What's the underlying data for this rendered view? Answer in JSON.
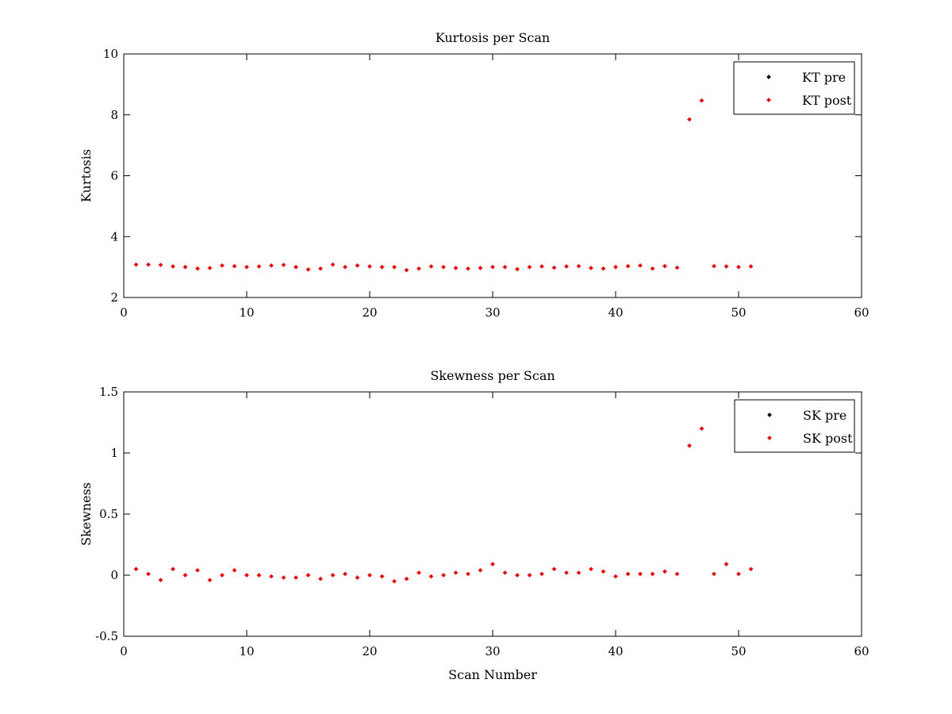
{
  "chart_data": [
    {
      "type": "scatter",
      "title": "Kurtosis per Scan",
      "xlabel": "",
      "ylabel": "Kurtosis",
      "xlim": [
        0,
        60
      ],
      "ylim": [
        2,
        10
      ],
      "xticks": [
        "0",
        "10",
        "20",
        "30",
        "40",
        "50",
        "60"
      ],
      "yticks": [
        "2",
        "4",
        "6",
        "8",
        "10"
      ],
      "grid": false,
      "legend_position": "top-right",
      "series": [
        {
          "name": "KT pre",
          "color": "#000000",
          "marker": "dot",
          "x": [],
          "y": []
        },
        {
          "name": "KT post",
          "color": "#ff0000",
          "marker": "dot",
          "x": [
            1,
            2,
            3,
            4,
            5,
            6,
            7,
            8,
            9,
            10,
            11,
            12,
            13,
            14,
            15,
            16,
            17,
            18,
            19,
            20,
            21,
            22,
            23,
            24,
            25,
            26,
            27,
            28,
            29,
            30,
            31,
            32,
            33,
            34,
            35,
            36,
            37,
            38,
            39,
            40,
            41,
            42,
            43,
            44,
            45,
            46,
            47,
            48,
            49,
            50,
            51
          ],
          "y": [
            3.08,
            3.08,
            3.07,
            3.02,
            3.0,
            2.95,
            2.97,
            3.05,
            3.03,
            3.0,
            3.02,
            3.05,
            3.07,
            3.0,
            2.92,
            2.95,
            3.08,
            3.0,
            3.05,
            3.02,
            3.0,
            3.0,
            2.9,
            2.95,
            3.02,
            3.0,
            2.97,
            2.95,
            2.97,
            3.0,
            3.0,
            2.93,
            3.0,
            3.02,
            2.98,
            3.02,
            3.03,
            2.97,
            2.95,
            3.0,
            3.03,
            3.05,
            2.95,
            3.03,
            2.98,
            7.85,
            8.47,
            3.03,
            3.02,
            3.0,
            3.02
          ]
        }
      ]
    },
    {
      "type": "scatter",
      "title": "Skewness per Scan",
      "xlabel": "Scan Number",
      "ylabel": "Skewness",
      "xlim": [
        0,
        60
      ],
      "ylim": [
        -0.5,
        1.5
      ],
      "xticks": [
        "0",
        "10",
        "20",
        "30",
        "40",
        "50",
        "60"
      ],
      "yticks": [
        "-0.5",
        "0",
        "0.5",
        "1",
        "1.5"
      ],
      "grid": false,
      "legend_position": "top-right",
      "series": [
        {
          "name": "SK pre",
          "color": "#000000",
          "marker": "dot",
          "x": [],
          "y": []
        },
        {
          "name": "SK post",
          "color": "#ff0000",
          "marker": "dot",
          "x": [
            1,
            2,
            3,
            4,
            5,
            6,
            7,
            8,
            9,
            10,
            11,
            12,
            13,
            14,
            15,
            16,
            17,
            18,
            19,
            20,
            21,
            22,
            23,
            24,
            25,
            26,
            27,
            28,
            29,
            30,
            31,
            32,
            33,
            34,
            35,
            36,
            37,
            38,
            39,
            40,
            41,
            42,
            43,
            44,
            45,
            46,
            47,
            48,
            49,
            50,
            51
          ],
          "y": [
            0.05,
            0.01,
            -0.04,
            0.05,
            0.0,
            0.04,
            -0.04,
            0.0,
            0.04,
            0.0,
            0.0,
            -0.01,
            -0.02,
            -0.02,
            0.0,
            -0.03,
            0.0,
            0.01,
            -0.02,
            0.0,
            -0.01,
            -0.05,
            -0.03,
            0.02,
            -0.01,
            0.0,
            0.02,
            0.01,
            0.04,
            0.09,
            0.02,
            0.0,
            0.0,
            0.01,
            0.05,
            0.02,
            0.02,
            0.05,
            0.03,
            -0.01,
            0.01,
            0.01,
            0.01,
            0.03,
            0.01,
            1.06,
            1.2,
            0.01,
            0.09,
            0.01,
            0.05
          ]
        }
      ]
    }
  ]
}
